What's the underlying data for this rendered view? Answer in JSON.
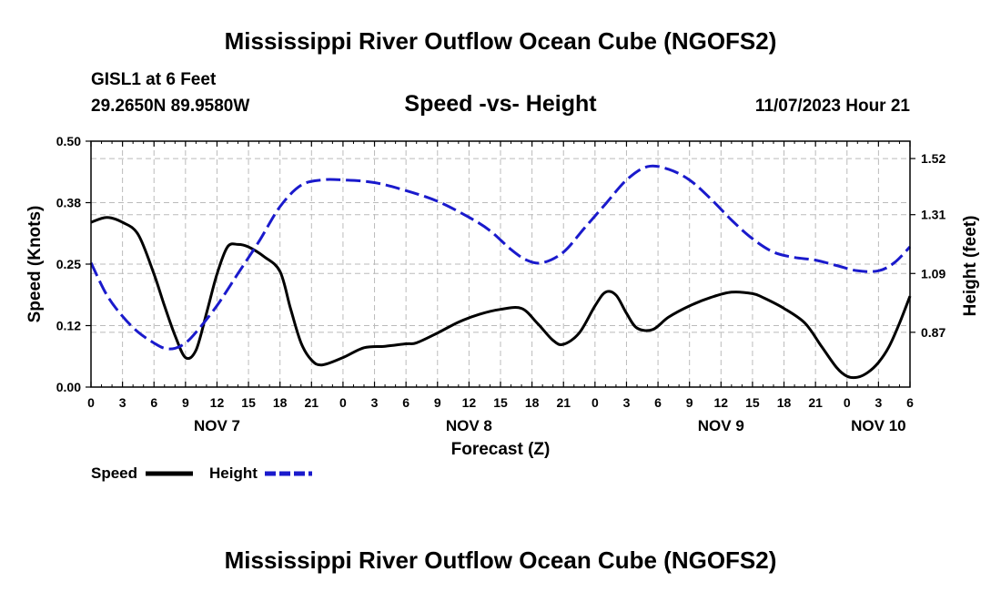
{
  "header": {
    "title": "Mississippi River Outflow Ocean Cube (NGOFS2)",
    "station": "GISL1 at 6 Feet",
    "coords": "29.2650N  89.9580W",
    "subtitle": "Speed -vs- Height",
    "datetime": "11/07/2023 Hour 21"
  },
  "footer": {
    "title": "Mississippi River Outflow Ocean Cube (NGOFS2)"
  },
  "legend": {
    "speed_label": "Speed",
    "height_label": "Height"
  },
  "colors": {
    "speed": "#000000",
    "height": "#1a1acc",
    "grid": "#bbbbbb"
  },
  "chart_data": {
    "type": "line",
    "title": "Speed -vs- Height",
    "xlabel": "Forecast (Z)",
    "ylabel": "Speed (Knots)",
    "y2label": "Height (feet)",
    "xlim": [
      0,
      78
    ],
    "ylim": [
      0,
      0.5
    ],
    "y2lim": [
      0.665,
      1.585
    ],
    "yticks": [
      "0.00",
      "0.12",
      "0.25",
      "0.38",
      "0.50"
    ],
    "yticks_values": [
      0,
      0.125,
      0.25,
      0.375,
      0.5
    ],
    "y2ticks": [
      "0.87",
      "1.09",
      "1.31",
      "1.52"
    ],
    "y2ticks_values": [
      0.87,
      1.09,
      1.31,
      1.52
    ],
    "xtick_labels": [
      "0",
      "3",
      "6",
      "9",
      "12",
      "15",
      "18",
      "21",
      "0",
      "3",
      "6",
      "9",
      "12",
      "15",
      "18",
      "21",
      "0",
      "3",
      "6",
      "9",
      "12",
      "15",
      "18",
      "21",
      "0",
      "3",
      "6"
    ],
    "day_labels": [
      {
        "label": "NOV 7",
        "x": 12
      },
      {
        "label": "NOV 8",
        "x": 36
      },
      {
        "label": "NOV 9",
        "x": 60
      },
      {
        "label": "NOV 10",
        "x": 75
      }
    ],
    "grid": true,
    "series": [
      {
        "name": "Speed",
        "axis": "left",
        "style": "solid",
        "x": [
          0,
          1.5,
          3,
          4.5,
          6,
          7,
          8,
          9,
          10,
          11,
          12,
          13,
          14,
          15,
          16.5,
          18,
          19,
          20,
          21,
          22,
          24,
          26,
          28,
          30,
          31,
          33,
          35,
          37,
          39,
          41,
          42.5,
          44,
          45,
          46.5,
          48,
          49,
          50,
          51,
          52,
          53.5,
          55,
          57,
          59,
          61,
          63,
          64,
          66,
          68,
          69.5,
          71,
          72,
          73,
          74,
          75,
          76,
          77,
          78
        ],
        "values": [
          0.335,
          0.345,
          0.335,
          0.31,
          0.23,
          0.165,
          0.105,
          0.06,
          0.075,
          0.15,
          0.23,
          0.285,
          0.29,
          0.285,
          0.265,
          0.235,
          0.16,
          0.09,
          0.055,
          0.045,
          0.06,
          0.08,
          0.083,
          0.088,
          0.09,
          0.11,
          0.132,
          0.148,
          0.158,
          0.16,
          0.13,
          0.095,
          0.087,
          0.11,
          0.165,
          0.193,
          0.187,
          0.15,
          0.12,
          0.117,
          0.142,
          0.165,
          0.182,
          0.193,
          0.19,
          0.182,
          0.16,
          0.13,
          0.085,
          0.04,
          0.022,
          0.02,
          0.03,
          0.05,
          0.082,
          0.13,
          0.185
        ]
      },
      {
        "name": "Height",
        "axis": "right",
        "style": "dashed",
        "x": [
          0,
          1.5,
          3,
          4.5,
          6,
          7,
          8,
          9,
          10,
          12,
          14,
          16,
          18,
          20,
          22,
          24,
          27,
          30,
          33,
          36,
          38,
          40,
          41.5,
          43,
          45,
          47,
          49,
          51,
          53,
          55,
          57,
          59,
          61,
          63,
          65,
          67,
          69,
          71,
          73,
          75,
          76.5,
          78
        ],
        "values": [
          1.13,
          1.01,
          0.93,
          0.87,
          0.83,
          0.81,
          0.81,
          0.83,
          0.87,
          0.97,
          1.09,
          1.21,
          1.34,
          1.42,
          1.44,
          1.44,
          1.43,
          1.4,
          1.36,
          1.3,
          1.25,
          1.18,
          1.14,
          1.13,
          1.17,
          1.26,
          1.35,
          1.44,
          1.49,
          1.48,
          1.44,
          1.37,
          1.29,
          1.22,
          1.17,
          1.15,
          1.14,
          1.12,
          1.1,
          1.1,
          1.13,
          1.19
        ]
      }
    ]
  }
}
